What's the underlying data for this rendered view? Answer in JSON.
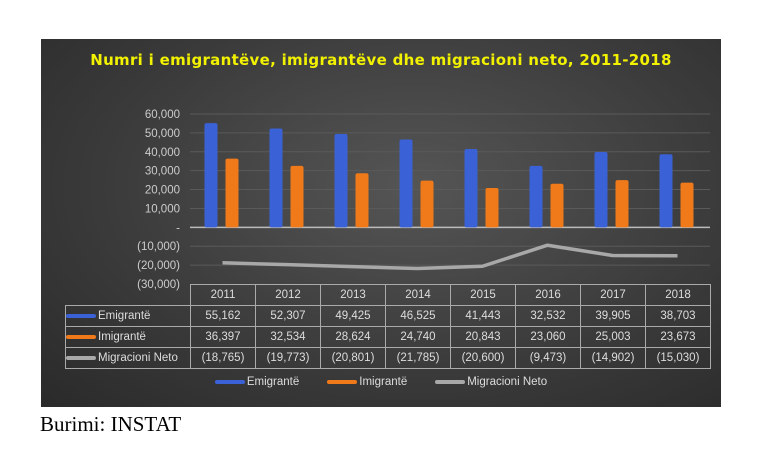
{
  "chart_data": {
    "type": "bar",
    "title": "Numri i emigrantëve, imigrantëve dhe migracioni neto, 2011-2018",
    "categories": [
      "2011",
      "2012",
      "2013",
      "2014",
      "2015",
      "2016",
      "2017",
      "2018"
    ],
    "ylim": [
      -30000,
      60000
    ],
    "yticks": [
      "60,000",
      "50,000",
      "40,000",
      "30,000",
      "20,000",
      "10,000",
      "-",
      "(10,000)",
      "(20,000)",
      "(30,000)"
    ],
    "grid": true,
    "legend": "bottom",
    "series": [
      {
        "name": "Emigrantë",
        "kind": "bar",
        "color": "#3a62d6",
        "values": [
          55162,
          52307,
          49425,
          46525,
          41443,
          32532,
          39905,
          38703
        ],
        "labels": [
          "55,162",
          "52,307",
          "49,425",
          "46,525",
          "41,443",
          "32,532",
          "39,905",
          "38,703"
        ]
      },
      {
        "name": "Imigrantë",
        "kind": "bar",
        "color": "#f07a1a",
        "values": [
          36397,
          32534,
          28624,
          24740,
          20843,
          23060,
          25003,
          23673
        ],
        "labels": [
          "36,397",
          "32,534",
          "28,624",
          "24,740",
          "20,843",
          "23,060",
          "25,003",
          "23,673"
        ]
      },
      {
        "name": "Migracioni Neto",
        "kind": "line",
        "color": "#a8a8a8",
        "values": [
          -18765,
          -19773,
          -20801,
          -21785,
          -20600,
          -9473,
          -14902,
          -15030
        ],
        "labels": [
          "(18,765)",
          "(19,773)",
          "(20,801)",
          "(21,785)",
          "(20,600)",
          "(9,473)",
          "(14,902)",
          "(15,030)"
        ]
      }
    ]
  },
  "source": "Burimi: INSTAT"
}
